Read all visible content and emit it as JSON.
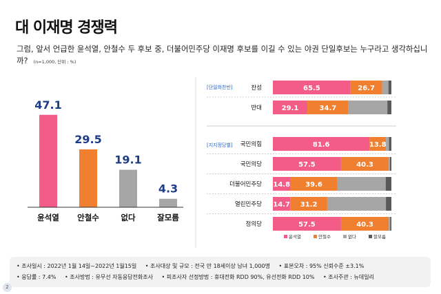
{
  "title": "대 이재명 경쟁력",
  "question": "그럼, 앞서 언급한 윤석열, 안철수 두 후보 중, 더불어민주당 이재명 후보를 이길 수 있는 야권 단일후보는 누구라고 생각하십니까?",
  "unit_note": "(n=1,000, 단위 : %)",
  "colors": {
    "윤석열": "#f25c86",
    "안철수": "#f08030",
    "없다": "#a6a6a6",
    "잘모름": "#595959",
    "label_blue": "#1f3c88",
    "section_blue": "#2a66c6"
  },
  "chart_data": [
    {
      "type": "bar",
      "categories": [
        "윤석열",
        "안철수",
        "없다",
        "잘모름"
      ],
      "values": [
        47.1,
        29.5,
        19.1,
        4.3
      ]
    },
    {
      "type": "bar",
      "orientation": "horizontal",
      "stacked": true,
      "series_names": [
        "윤석열",
        "안철수",
        "없다",
        "잘모름"
      ],
      "legend_position": "bottom",
      "groups": [
        {
          "label": "[단일화찬반]",
          "rows": [
            {
              "category": "찬성",
              "values": [
                65.5,
                26.7,
                5.3,
                2.5
              ]
            },
            {
              "category": "반대",
              "values": [
                29.1,
                34.7,
                32.8,
                3.4
              ]
            }
          ]
        },
        {
          "label": "[지지정당별]",
          "rows": [
            {
              "category": "국민의힘",
              "values": [
                81.6,
                13.8,
                2.6,
                2.0
              ]
            },
            {
              "category": "국민의당",
              "values": [
                57.5,
                40.3,
                1.0,
                1.2
              ]
            },
            {
              "category": "더불어민주당",
              "values": [
                14.8,
                39.6,
                40.8,
                4.8
              ]
            },
            {
              "category": "열린민주당",
              "values": [
                14.7,
                31.2,
                49.5,
                4.6
              ]
            },
            {
              "category": "정의당",
              "values": [
                57.5,
                40.3,
                1.2,
                1.0
              ]
            }
          ]
        }
      ]
    }
  ],
  "footer": {
    "line1": [
      "• 조사일시 : 2022년 1월 14일~2022년 1월15일",
      "• 조사대상 및 규모 : 전국 만 18세이상 남녀 1,000명",
      "• 표본오차 : 95% 신뢰수준 ±3.1%"
    ],
    "line2": [
      "• 응답률 : 7.4%",
      "• 조사방법 : 유무선 자동응답전화조사",
      "• 피조사자 선정방법 : 휴대전화 RDD 90%, 유선전화 RDD  10%",
      "• 조사주관 : 뉴데일리"
    ]
  },
  "page_number": "2"
}
